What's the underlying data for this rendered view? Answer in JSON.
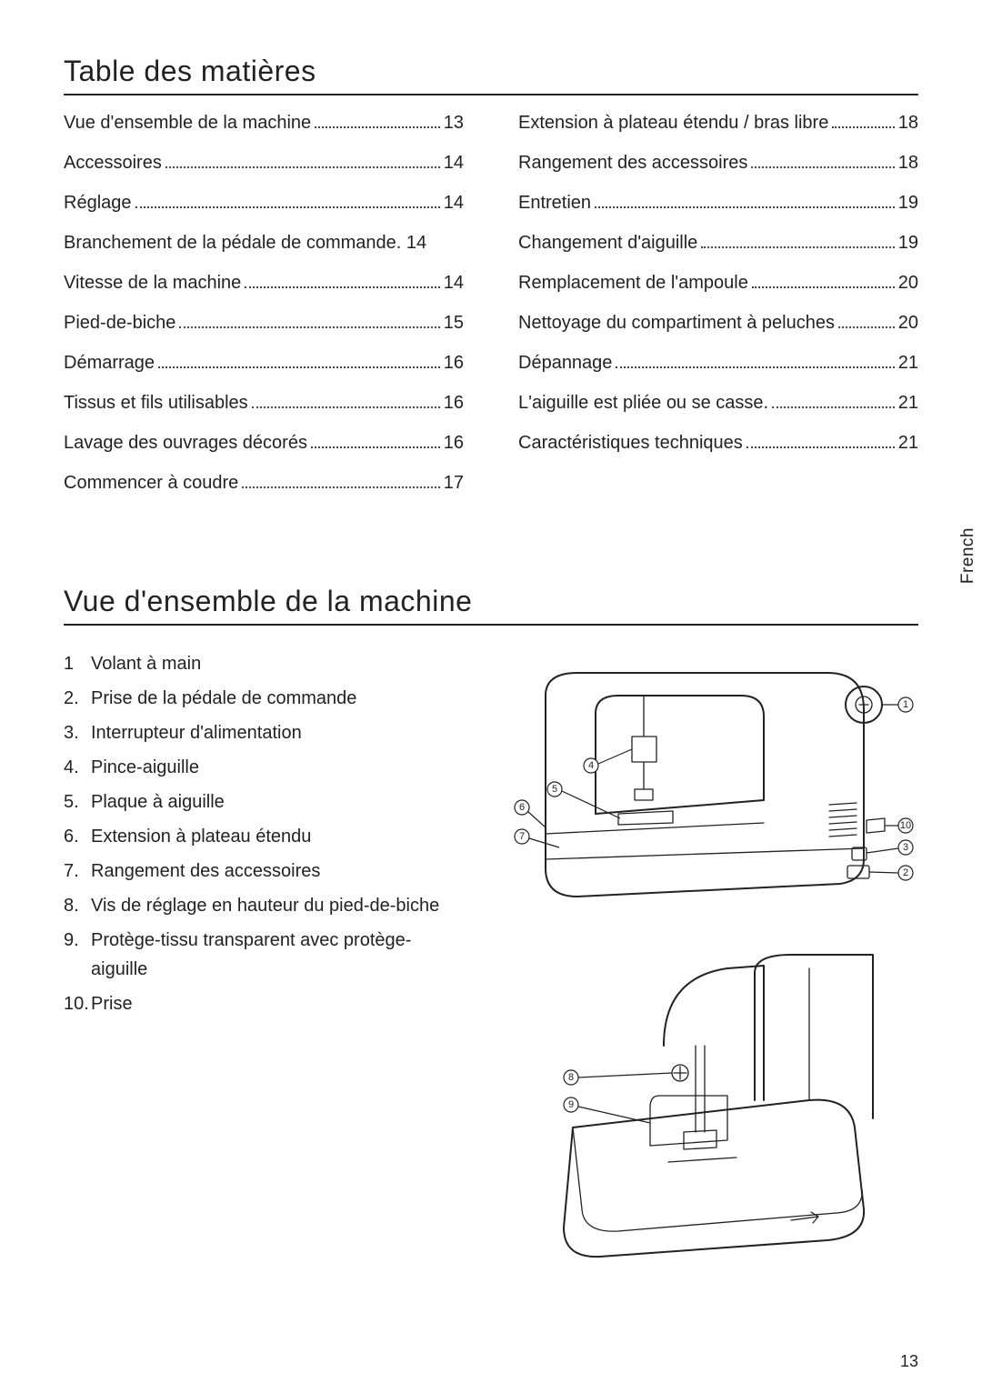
{
  "language_tab": "French",
  "page_number": "13",
  "toc": {
    "title": "Table des matières",
    "left": [
      {
        "label": "Vue d'ensemble de la machine",
        "page": "13"
      },
      {
        "label": "Accessoires",
        "page": "14"
      },
      {
        "label": "Réglage",
        "page": "14"
      },
      {
        "label": "Branchement de la pédale de commande.",
        "page": "14",
        "no_dots": true
      },
      {
        "label": "Vitesse de la machine",
        "page": "14"
      },
      {
        "label": "Pied-de-biche",
        "page": "15"
      },
      {
        "label": "Démarrage",
        "page": "16"
      },
      {
        "label": "Tissus et fils utilisables",
        "page": "16"
      },
      {
        "label": "Lavage des ouvrages décorés",
        "page": "16"
      },
      {
        "label": "Commencer à coudre",
        "page": "17"
      }
    ],
    "right": [
      {
        "label": "Extension à plateau étendu /  bras libre",
        "page": "18"
      },
      {
        "label": "Rangement des accessoires",
        "page": "18"
      },
      {
        "label": "Entretien",
        "page": "19"
      },
      {
        "label": "Changement d'aiguille",
        "page": "19"
      },
      {
        "label": "Remplacement de l'ampoule",
        "page": "20"
      },
      {
        "label": "Nettoyage du compartiment à peluches",
        "page": "20"
      },
      {
        "label": "Dépannage",
        "page": "21"
      },
      {
        "label": "L'aiguille est pliée ou se casse.",
        "page": "21"
      },
      {
        "label": "Caractéristiques techniques",
        "page": "21"
      }
    ]
  },
  "overview": {
    "title": "Vue d'ensemble de la machine",
    "parts": [
      {
        "n": "1",
        "text": "Volant à main"
      },
      {
        "n": "2.",
        "text": "Prise de la pédale de commande"
      },
      {
        "n": "3.",
        "text": "Interrupteur d'alimentation"
      },
      {
        "n": "4.",
        "text": "Pince-aiguille"
      },
      {
        "n": "5.",
        "text": "Plaque à aiguille"
      },
      {
        "n": "6.",
        "text": "Extension à plateau étendu"
      },
      {
        "n": "7.",
        "text": "Rangement des accessoires"
      },
      {
        "n": "8.",
        "text": "Vis de réglage en hauteur du pied-de-biche"
      },
      {
        "n": "9.",
        "text": "Protège-tissu transparent avec protège-aiguille"
      },
      {
        "n": "10.",
        "text": "Prise"
      }
    ]
  },
  "style": {
    "text_color": "#222222",
    "bg_color": "#ffffff",
    "rule_color": "#222222",
    "title_fontsize": 32,
    "body_fontsize": 20,
    "callout_fontsize": 11
  },
  "diagram_top": {
    "callouts": [
      "1",
      "2",
      "3",
      "4",
      "5",
      "6",
      "7",
      "10"
    ]
  },
  "diagram_bottom": {
    "callouts": [
      "8",
      "9"
    ]
  }
}
